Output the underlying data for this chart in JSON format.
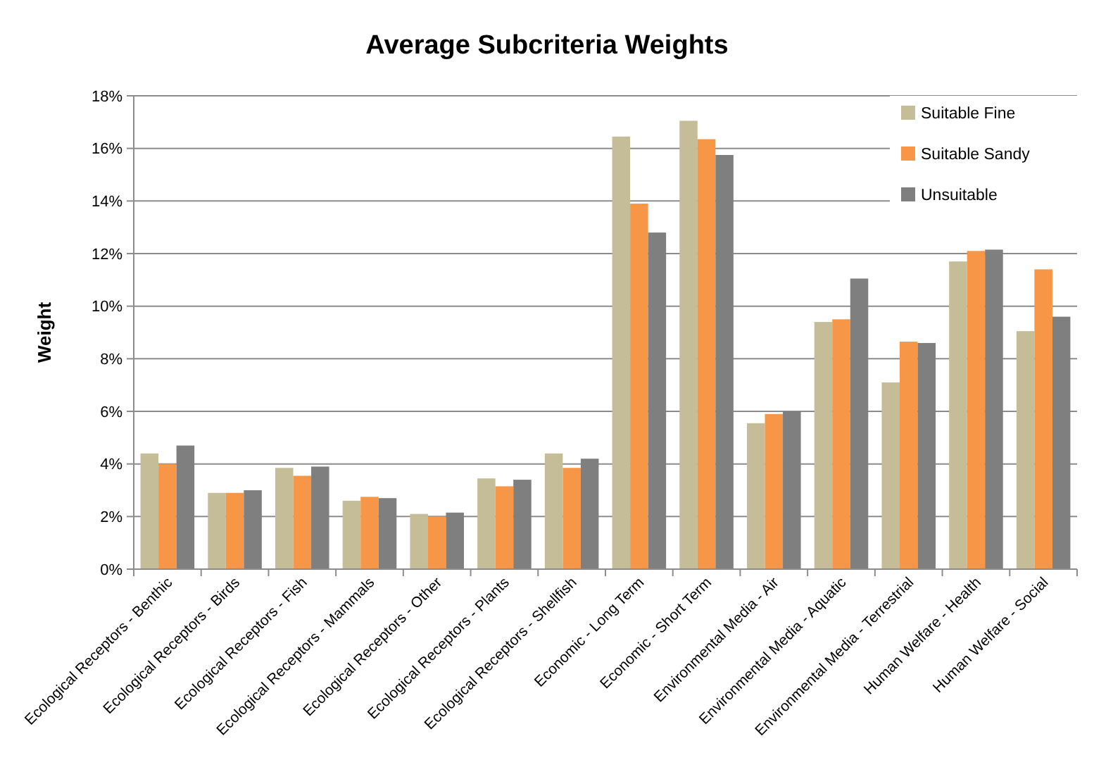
{
  "chart_data": {
    "type": "bar",
    "title": "Average Subcriteria Weights",
    "ylabel": "Weight",
    "categories": [
      "Ecological Receptors - Benthic",
      "Ecological Receptors - Birds",
      "Ecological Receptors - Fish",
      "Ecological Receptors - Mammals",
      "Ecological Receptors - Other",
      "Ecological Receptors - Plants",
      "Ecological Receptors - Shellfish",
      "Economic - Long Term",
      "Economic - Short Term",
      "Environmental Media - Air",
      "Environmental Media - Aquatic",
      "Environmental Media - Terrestrial",
      "Human Welfare - Health",
      "Human Welfare - Social"
    ],
    "series": [
      {
        "name": "Suitable Fine",
        "color": "#c4bd97",
        "values": [
          4.4,
          2.9,
          3.85,
          2.6,
          2.1,
          3.45,
          4.4,
          16.45,
          17.05,
          5.55,
          9.4,
          7.1,
          11.7,
          9.05
        ]
      },
      {
        "name": "Suitable Sandy",
        "color": "#f79646",
        "values": [
          4.0,
          2.9,
          3.55,
          2.75,
          2.0,
          3.15,
          3.85,
          13.9,
          16.35,
          5.9,
          9.5,
          8.65,
          12.1,
          11.4
        ]
      },
      {
        "name": "Unsuitable",
        "color": "#7f7f7f",
        "values": [
          4.7,
          3.0,
          3.9,
          2.7,
          2.15,
          3.4,
          4.2,
          12.8,
          15.75,
          6.0,
          11.05,
          8.6,
          12.15,
          9.6
        ]
      }
    ],
    "ylim": [
      0,
      18
    ],
    "yticks": [
      {
        "value": 0,
        "label": "0%"
      },
      {
        "value": 2,
        "label": "2%"
      },
      {
        "value": 4,
        "label": "4%"
      },
      {
        "value": 6,
        "label": "6%"
      },
      {
        "value": 8,
        "label": "8%"
      },
      {
        "value": 10,
        "label": "10%"
      },
      {
        "value": 12,
        "label": "12%"
      },
      {
        "value": 14,
        "label": "14%"
      },
      {
        "value": 16,
        "label": "16%"
      },
      {
        "value": 18,
        "label": "18%"
      }
    ],
    "grid": "y",
    "legend": "top right"
  }
}
